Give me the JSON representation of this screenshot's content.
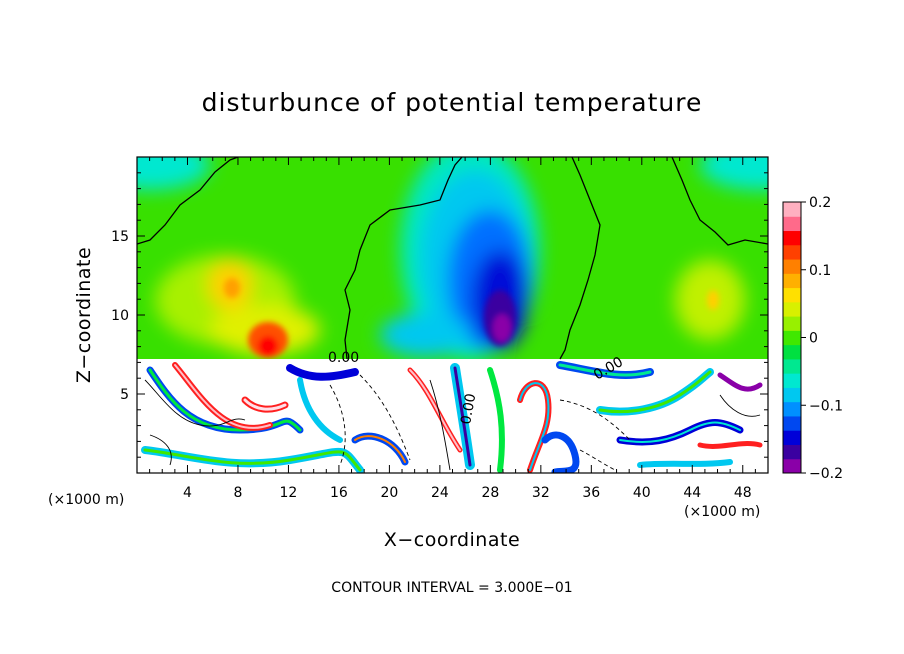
{
  "chart_data": {
    "type": "heatmap",
    "title": "disturbunce of potential temperature",
    "xlabel": "X−coordinate",
    "ylabel": "Z−coordinate",
    "x_unit_label": "(×1000 m)",
    "y_unit_label": "(×1000 m)",
    "footer": "CONTOUR INTERVAL = 3.000E−01",
    "xlim": [
      0,
      50
    ],
    "ylim": [
      0,
      20
    ],
    "x_ticks": [
      4,
      8,
      12,
      16,
      20,
      24,
      28,
      32,
      36,
      40,
      44,
      48
    ],
    "y_ticks": [
      5,
      10,
      15
    ],
    "colorbar": {
      "range": [
        -0.2,
        0.2
      ],
      "tick_values": [
        0.2,
        0.1,
        0,
        -0.1,
        -0.2
      ],
      "tick_labels": [
        "0.2",
        "0.1",
        "0",
        "−0.1",
        "−0.2"
      ],
      "colors": [
        "#8a00a8",
        "#3a00a0",
        "#0000d8",
        "#0048f0",
        "#0090ff",
        "#00c8f0",
        "#00e8d0",
        "#00e890",
        "#00e040",
        "#40e800",
        "#98f000",
        "#d8f000",
        "#ffe000",
        "#ffb000",
        "#ff8000",
        "#ff4000",
        "#ff0000",
        "#ff6a8a",
        "#ffb0c0"
      ]
    },
    "contour_labels": [
      "0.00",
      "0.00",
      "0.00"
    ],
    "upper_region": {
      "z_range": [
        7.2,
        20
      ],
      "features": [
        {
          "kind": "cold core",
          "x": 28.5,
          "z": 10,
          "value": -0.19
        },
        {
          "kind": "cold plume",
          "x": 27,
          "z": 15,
          "value": -0.1
        },
        {
          "kind": "warm anomaly",
          "x": 10,
          "z": 9,
          "value": 0.14
        },
        {
          "kind": "warm anomaly",
          "x": 8,
          "z": 12,
          "value": 0.09
        },
        {
          "kind": "warm anomaly",
          "x": 45.5,
          "z": 11,
          "value": 0.08
        },
        {
          "kind": "cool corner",
          "x": 1,
          "z": 19.5,
          "value": -0.06
        },
        {
          "kind": "cool corner",
          "x": 49,
          "z": 19.5,
          "value": -0.06
        }
      ]
    }
  }
}
